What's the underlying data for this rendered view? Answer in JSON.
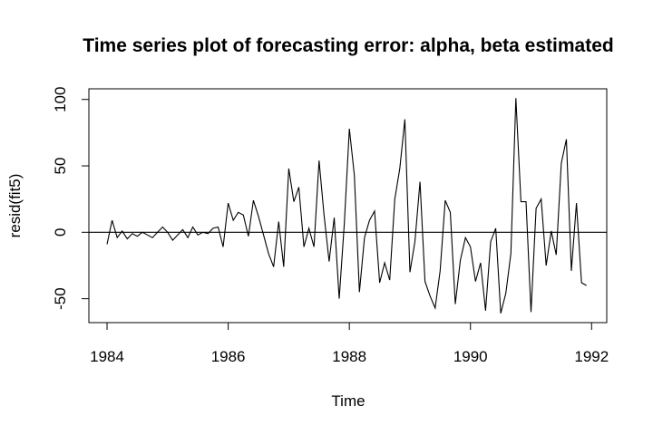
{
  "chart_data": {
    "type": "line",
    "title": "Time series plot of forecasting error: alpha, beta estimated",
    "xlabel": "Time",
    "ylabel": "resid(fit5)",
    "xlim": [
      1983.7,
      1992.25
    ],
    "ylim": [
      -68,
      108
    ],
    "xticks": [
      "1984",
      "1986",
      "1988",
      "1990",
      "1992"
    ],
    "yticks": [
      "-50",
      "0",
      "50",
      "100"
    ],
    "reference_line_y": 0,
    "grid": false,
    "legend": "none",
    "x_start": 1984.0,
    "x_step_months": 1,
    "series": [
      {
        "values": [
          -9,
          9,
          -4,
          1,
          -5,
          -1,
          -3,
          0,
          -2,
          -4,
          0,
          4,
          0,
          -6,
          -2,
          2,
          -4,
          4,
          -2,
          0,
          -1,
          3,
          4,
          -11,
          22,
          9,
          15,
          13,
          -3,
          24,
          12,
          -2,
          -16,
          -26,
          8,
          -26,
          48,
          23,
          34,
          -11,
          3,
          -11,
          54,
          13,
          -22,
          11,
          -50,
          6,
          78,
          43,
          -45,
          -4,
          9,
          16,
          -38,
          -23,
          -36,
          25,
          48,
          85,
          -30,
          -7,
          38,
          -37,
          -48,
          -57,
          -29,
          24,
          15,
          -54,
          -21,
          -4,
          -11,
          -37,
          -23,
          -59,
          -7,
          3,
          -61,
          -46,
          -16,
          101,
          23,
          23,
          -60,
          18,
          25,
          -25,
          1,
          -17,
          52,
          70,
          -29,
          22,
          -38,
          -40
        ]
      }
    ]
  }
}
